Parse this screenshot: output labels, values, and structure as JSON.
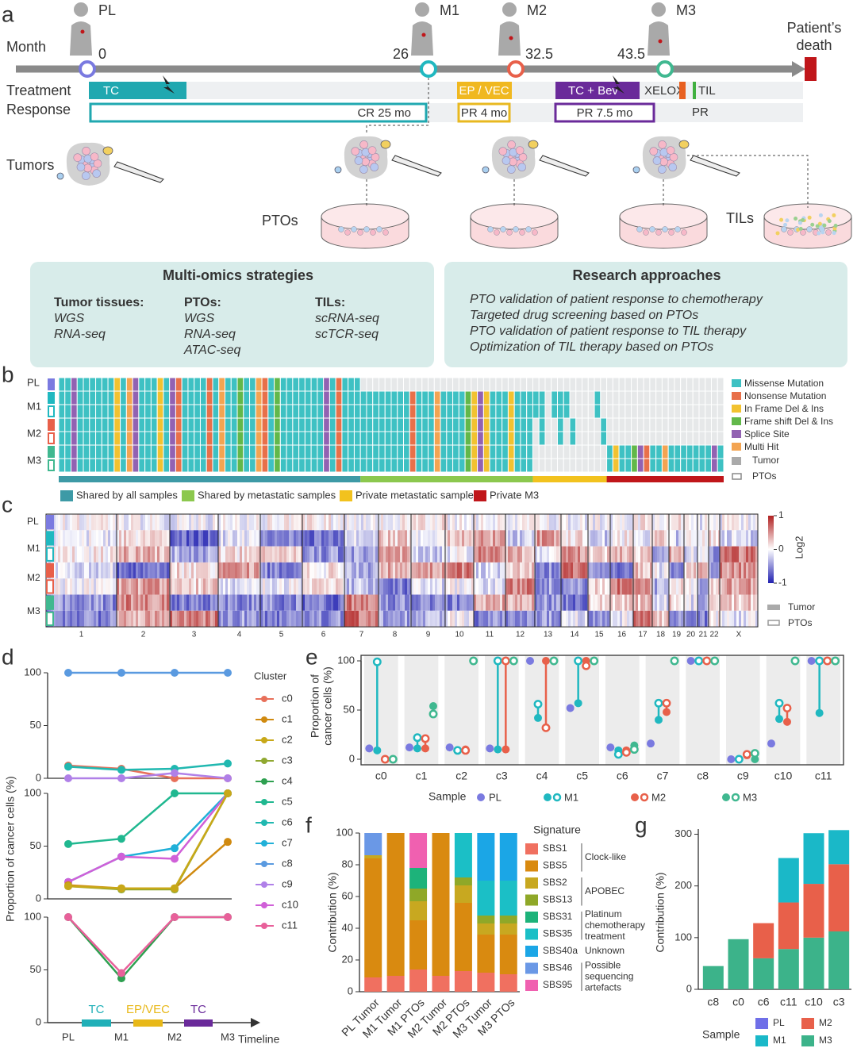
{
  "figure": {
    "panel_labels": [
      "a",
      "b",
      "c",
      "d",
      "e",
      "f",
      "g"
    ]
  },
  "panel_a": {
    "month_label": "Month",
    "samples": [
      {
        "name": "PL",
        "month": "0"
      },
      {
        "name": "M1",
        "month": "26"
      },
      {
        "name": "M2",
        "month": "32.5"
      },
      {
        "name": "M3",
        "month": "43.5"
      }
    ],
    "death": [
      "Patient’s",
      "death"
    ],
    "treatment_label": "Treatment",
    "response_label": "Response",
    "treatments": [
      "TC",
      "EP / VEC",
      "TC + Bev",
      "XELOX",
      "TIL"
    ],
    "responses": [
      "CR 25 mo",
      "PR 4 mo",
      "PR 7.5 mo",
      "PR"
    ],
    "tumors_label": "Tumors",
    "ptos_label": "PTOs",
    "tils_label": "TILs",
    "multi_omics": {
      "title": "Multi-omics strategies",
      "columns": [
        {
          "heading": "Tumor tissues:",
          "items": [
            "WGS",
            "RNA-seq"
          ]
        },
        {
          "heading": "PTOs:",
          "items": [
            "WGS",
            "RNA-seq",
            "ATAC-seq"
          ]
        },
        {
          "heading": "TILs:",
          "items": [
            "scRNA-seq",
            "scTCR-seq"
          ]
        }
      ]
    },
    "research": {
      "title": "Research approaches",
      "items": [
        "PTO validation of patient response to chemotherapy",
        "Targeted drug screening based on PTOs",
        "PTO validation of patient response to TIL therapy",
        "Optimization of TIL therapy based on PTOs"
      ]
    }
  },
  "panel_b": {
    "rows": [
      "PL",
      "M1",
      "M2",
      "M3"
    ],
    "legend": [
      {
        "label": "Missense Mutation",
        "color": "#3ec1c3"
      },
      {
        "label": "Nonsense Mutation",
        "color": "#e8704a"
      },
      {
        "label": "In Frame Del & Ins",
        "color": "#f2c230"
      },
      {
        "label": "Frame shift Del & Ins",
        "color": "#62b84a"
      },
      {
        "label": "Splice Site",
        "color": "#9262b2"
      },
      {
        "label": "Multi Hit",
        "color": "#f3a452"
      }
    ],
    "sample_legend": [
      "Tumor",
      "PTOs"
    ],
    "groups": [
      {
        "label": "Shared by all samples",
        "color": "#3d9aa6"
      },
      {
        "label": "Shared by metastatic samples",
        "color": "#8cc84e"
      },
      {
        "label": "Private metastatic sample",
        "color": "#f2c21e"
      },
      {
        "label": "Private M3",
        "color": "#c0161a"
      }
    ]
  },
  "panel_c": {
    "rows": [
      "PL",
      "M1",
      "M2",
      "M3"
    ],
    "chromosomes": [
      "1",
      "2",
      "3",
      "4",
      "5",
      "6",
      "7",
      "8",
      "9",
      "10",
      "11",
      "12",
      "13",
      "14",
      "15",
      "16",
      "17",
      "18",
      "19",
      "20",
      "21",
      "22",
      "X"
    ],
    "colorbar": {
      "lim": [
        -1,
        1
      ],
      "ticks": [
        1,
        0,
        -1
      ],
      "label": "Log2"
    },
    "sample_legend": [
      "Tumor",
      "PTOs"
    ]
  },
  "panel_d": {
    "y_label": "Proportion of cancer cells (%)",
    "legend_title": "Cluster",
    "legend": [
      {
        "name": "c0",
        "color": "#e8705a"
      },
      {
        "name": "c1",
        "color": "#d08a10"
      },
      {
        "name": "c2",
        "color": "#c8a818"
      },
      {
        "name": "c3",
        "color": "#90a830"
      },
      {
        "name": "c4",
        "color": "#2ea050"
      },
      {
        "name": "c5",
        "color": "#20b890"
      },
      {
        "name": "c6",
        "color": "#20b8b0"
      },
      {
        "name": "c7",
        "color": "#20b0d8"
      },
      {
        "name": "c8",
        "color": "#5a9ae0"
      },
      {
        "name": "c9",
        "color": "#b080e8"
      },
      {
        "name": "c10",
        "color": "#d060d8"
      },
      {
        "name": "c11",
        "color": "#e8609a"
      }
    ],
    "treatments": [
      {
        "label": "TC",
        "color": "#20b0b8"
      },
      {
        "label": "EP/VEC",
        "color": "#e8b818"
      },
      {
        "label": "TC",
        "color": "#6a2a9a"
      }
    ],
    "x_label": "Timeline"
  },
  "chart_data": [
    {
      "type": "line",
      "ylim": [
        0,
        100
      ],
      "yticks": [
        0,
        50,
        100
      ],
      "series": [
        {
          "color": "#5a9ae0",
          "values": [
            100,
            100,
            100,
            100
          ]
        },
        {
          "color": "#e8705a",
          "values": [
            12,
            9,
            0,
            0
          ]
        },
        {
          "color": "#20b8b0",
          "values": [
            11,
            8,
            9,
            14
          ]
        },
        {
          "color": "#b080e8",
          "values": [
            0,
            0,
            5,
            0
          ]
        }
      ]
    },
    {
      "type": "line",
      "ylim": [
        0,
        100
      ],
      "yticks": [
        0,
        50,
        100
      ],
      "series": [
        {
          "color": "#20b890",
          "values": [
            52,
            57,
            100,
            100
          ]
        },
        {
          "color": "#20b0d8",
          "values": [
            16,
            40,
            48,
            100
          ]
        },
        {
          "color": "#d060d8",
          "values": [
            16,
            40,
            38,
            100
          ]
        },
        {
          "color": "#d08a10",
          "values": [
            13,
            10,
            10,
            54
          ]
        },
        {
          "color": "#90a830",
          "values": [
            12,
            9,
            9,
            100
          ]
        },
        {
          "color": "#c8a818",
          "values": [
            12,
            10,
            10,
            100
          ]
        }
      ]
    },
    {
      "type": "line",
      "categories": [
        "PL",
        "M1",
        "M2",
        "M3"
      ],
      "ylim": [
        0,
        100
      ],
      "yticks": [
        0,
        50,
        100
      ],
      "series": [
        {
          "color": "#2ea050",
          "values": [
            100,
            42,
            100,
            100
          ]
        },
        {
          "color": "#e8609a",
          "values": [
            100,
            47,
            100,
            100
          ]
        }
      ]
    },
    {
      "type": "dumbbell",
      "y_label": [
        "Proportion of",
        "cancer cells (%)"
      ],
      "legend_title": "Sample",
      "categories": [
        "c0",
        "c1",
        "c2",
        "c3",
        "c4",
        "c5",
        "c6",
        "c7",
        "c8",
        "c9",
        "c10",
        "c11"
      ],
      "ylim": [
        0,
        100
      ],
      "yticks": [
        0,
        50,
        100
      ],
      "series": [
        {
          "name": "PL",
          "color": "#7a7ae0",
          "values": [
            11,
            12,
            12,
            11,
            100,
            52,
            12,
            16,
            100,
            0,
            16,
            100
          ]
        },
        {
          "name": "M1",
          "color": "#20b8c0",
          "values": [
            9,
            11,
            9,
            10,
            42,
            57,
            9,
            40,
            100,
            0,
            41,
            47
          ],
          "pto_values": [
            99,
            22,
            9,
            100,
            56,
            100,
            5,
            57,
            100,
            0,
            57,
            100
          ]
        },
        {
          "name": "M2",
          "color": "#e8604a",
          "values": [
            0,
            11,
            10,
            10,
            100,
            100,
            9,
            48,
            100,
            4,
            38,
            100
          ],
          "pto_values": [
            0,
            21,
            9,
            100,
            32,
            95,
            7,
            57,
            100,
            5,
            52,
            100
          ]
        },
        {
          "name": "M3",
          "color": "#40b890",
          "values": [
            0,
            54,
            100,
            100,
            100,
            100,
            14,
            100,
            100,
            0,
            100,
            100
          ],
          "pto_values": [
            0,
            46,
            100,
            100,
            100,
            100,
            10,
            100,
            100,
            6,
            100,
            100
          ]
        }
      ]
    },
    {
      "type": "stacked_bar",
      "y_label": "Contribution (%)",
      "legend_title": "Signature",
      "categories": [
        "PL Tumor",
        "M1 Tumor",
        "M1 PTOs",
        "M2 Tumor",
        "M2 PTOs",
        "M3 Tumor",
        "M3 PTOs"
      ],
      "ylim": [
        0,
        100
      ],
      "yticks": [
        0,
        20,
        40,
        60,
        80,
        100
      ],
      "groups": [
        [
          "Clock-like"
        ],
        [
          "APOBEC"
        ],
        [
          "Platinum",
          "chemotherapy",
          "treatment"
        ],
        [
          "Unknown"
        ],
        [
          "Possible",
          "sequencing",
          "artefacts"
        ]
      ],
      "series": [
        {
          "name": "SBS1",
          "color": "#f07060",
          "values": [
            9,
            10,
            14,
            10,
            13,
            12,
            11
          ]
        },
        {
          "name": "SBS5",
          "color": "#d98a10",
          "values": [
            75,
            90,
            31,
            90,
            43,
            24,
            25
          ]
        },
        {
          "name": "SBS2",
          "color": "#c8a820",
          "values": [
            2,
            0,
            12,
            0,
            11,
            7,
            7
          ]
        },
        {
          "name": "SBS13",
          "color": "#8fa828",
          "values": [
            0,
            0,
            8,
            0,
            5,
            5,
            5
          ]
        },
        {
          "name": "SBS31",
          "color": "#1db37a",
          "values": [
            0,
            0,
            13,
            0,
            0,
            0,
            0
          ]
        },
        {
          "name": "SBS35",
          "color": "#1bbfc6",
          "values": [
            0,
            0,
            0,
            0,
            28,
            22,
            22
          ]
        },
        {
          "name": "SBS40a",
          "color": "#1ba6e6",
          "values": [
            0,
            0,
            0,
            0,
            0,
            30,
            30
          ]
        },
        {
          "name": "SBS46",
          "color": "#6a98e6",
          "values": [
            14,
            0,
            0,
            0,
            0,
            0,
            0
          ]
        },
        {
          "name": "SBS95",
          "color": "#f060b0",
          "values": [
            0,
            0,
            22,
            0,
            0,
            0,
            0
          ]
        }
      ]
    },
    {
      "type": "stacked_bar",
      "y_label": "Contribution (%)",
      "legend_title": "Sample",
      "categories": [
        "c8",
        "c0",
        "c6",
        "c11",
        "c10",
        "c3"
      ],
      "ylim": [
        0,
        310
      ],
      "yticks": [
        0,
        100,
        200,
        300
      ],
      "series": [
        {
          "name": "PL",
          "color": "#6f6fe8",
          "values": [
            0,
            0,
            0,
            0,
            0,
            0
          ]
        },
        {
          "name": "M1",
          "color": "#1ab8c8",
          "values": [
            0,
            0,
            0,
            86,
            98,
            66
          ]
        },
        {
          "name": "M2",
          "color": "#e8604a",
          "values": [
            0,
            0,
            68,
            90,
            104,
            130
          ]
        },
        {
          "name": "M3",
          "color": "#3cb38a",
          "values": [
            45,
            97,
            60,
            78,
            100,
            112
          ]
        }
      ]
    }
  ]
}
